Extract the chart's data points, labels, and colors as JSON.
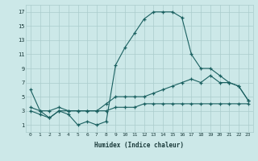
{
  "xlabel": "Humidex (Indice chaleur)",
  "ylabel": "",
  "bg_color": "#cce8e8",
  "grid_color": "#aacccc",
  "line_color": "#1a6060",
  "xlim": [
    -0.5,
    23.5
  ],
  "ylim": [
    0,
    18
  ],
  "xticks": [
    0,
    1,
    2,
    3,
    4,
    5,
    6,
    7,
    8,
    9,
    10,
    11,
    12,
    13,
    14,
    15,
    16,
    17,
    18,
    19,
    20,
    21,
    22,
    23
  ],
  "yticks": [
    1,
    3,
    5,
    7,
    9,
    11,
    13,
    15,
    17
  ],
  "line1_x": [
    0,
    1,
    2,
    3,
    4,
    5,
    6,
    7,
    8,
    9,
    10,
    11,
    12,
    13,
    14,
    15,
    16,
    17,
    18,
    19,
    20,
    21,
    22,
    23
  ],
  "line1_y": [
    6,
    3,
    2,
    3,
    2.5,
    1,
    1.5,
    1,
    1.5,
    9.5,
    12,
    14,
    16,
    17,
    17,
    17,
    16.2,
    11,
    9,
    9,
    8,
    7,
    6.5,
    4.5
  ],
  "line2_x": [
    0,
    1,
    2,
    3,
    4,
    5,
    6,
    7,
    8,
    9,
    10,
    11,
    12,
    13,
    14,
    15,
    16,
    17,
    18,
    19,
    20,
    21,
    22,
    23
  ],
  "line2_y": [
    3.5,
    3,
    3,
    3.5,
    3,
    3,
    3,
    3,
    4,
    5,
    5,
    5,
    5,
    5.5,
    6,
    6.5,
    7,
    7.5,
    7,
    8,
    7,
    7,
    6.5,
    4.5
  ],
  "line3_x": [
    0,
    1,
    2,
    3,
    4,
    5,
    6,
    7,
    8,
    9,
    10,
    11,
    12,
    13,
    14,
    15,
    16,
    17,
    18,
    19,
    20,
    21,
    22,
    23
  ],
  "line3_y": [
    3,
    2.5,
    2,
    3,
    3,
    3,
    3,
    3,
    3,
    3.5,
    3.5,
    3.5,
    4,
    4,
    4,
    4,
    4,
    4,
    4,
    4,
    4,
    4,
    4,
    4
  ]
}
